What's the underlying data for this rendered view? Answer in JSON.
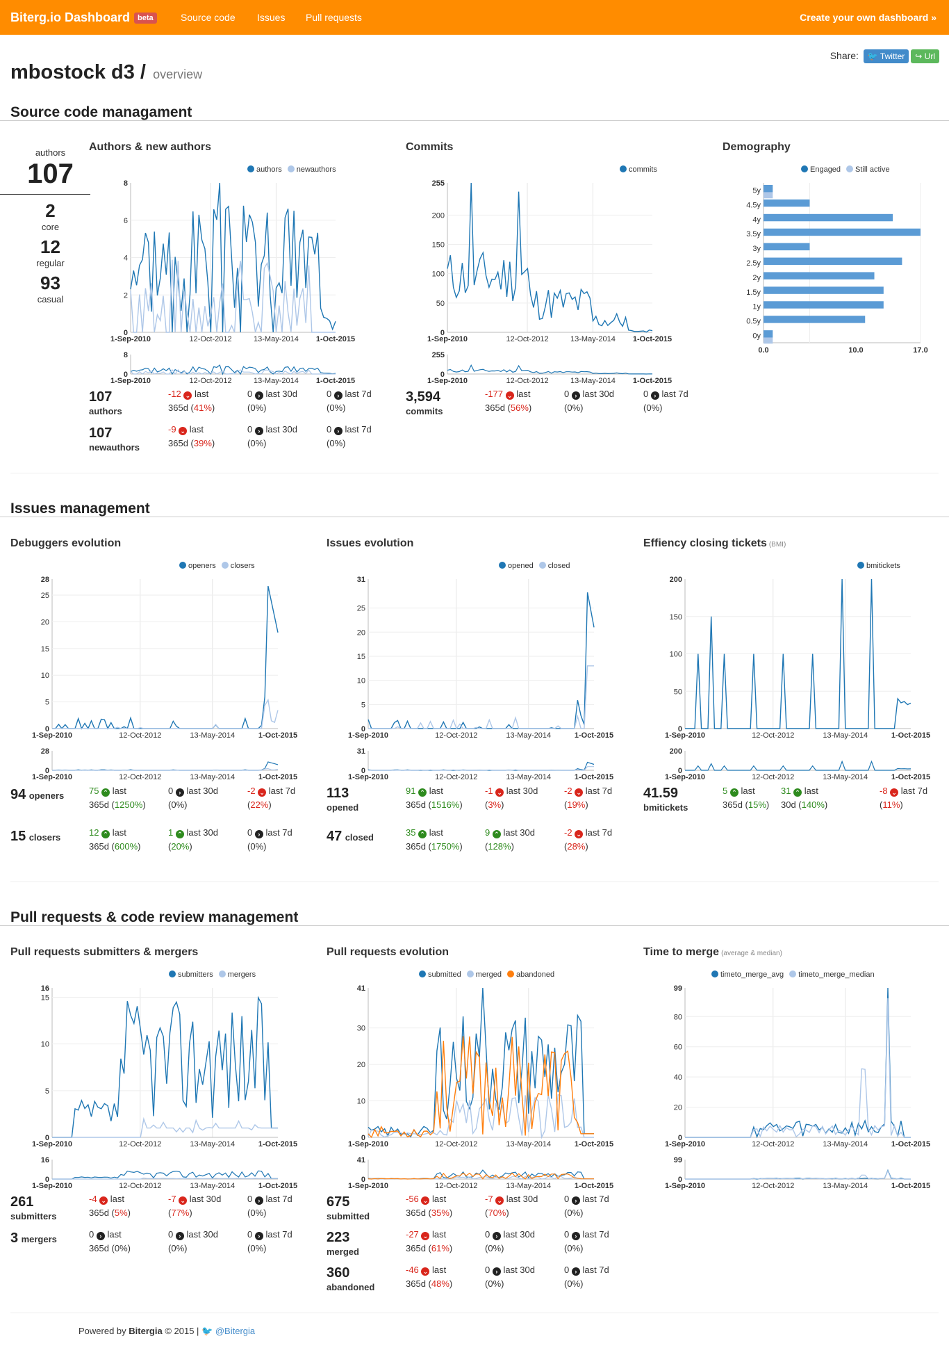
{
  "nav": {
    "brand": "Biterg.io Dashboard",
    "beta": "beta",
    "links": [
      "Source code",
      "Issues",
      "Pull requests"
    ],
    "create": "Create your own dashboard »"
  },
  "page": {
    "title": "mbostock d3 /",
    "subtitle": "overview"
  },
  "share": {
    "label": "Share:",
    "twitter": "Twitter",
    "url": "Url"
  },
  "sections": {
    "scm": "Source code managament",
    "its": "Issues management",
    "pr": "Pull requests & code review management"
  },
  "authors_summary": {
    "label": "authors",
    "total": "107",
    "core": "2",
    "core_label": "core",
    "regular": "12",
    "regular_label": "regular",
    "casual": "93",
    "casual_label": "casual"
  },
  "dates": {
    "d1": "1-Sep-2010",
    "d2": "12-Oct-2012",
    "d3": "13-May-2014",
    "d4": "1-Oct-2015"
  },
  "charts": {
    "authors": {
      "title": "Authors & new authors",
      "ymax": 8,
      "yticks": [
        0,
        2,
        4,
        6,
        8
      ],
      "legend": [
        {
          "name": "authors",
          "color": "#1f77b4"
        },
        {
          "name": "newauthors",
          "color": "#aec7e8"
        }
      ],
      "mini_ytick": "8"
    },
    "commits": {
      "title": "Commits",
      "ymax": 255,
      "yticks": [
        0,
        50,
        100,
        150,
        200,
        255
      ],
      "legend": [
        {
          "name": "commits",
          "color": "#1f77b4"
        }
      ],
      "mini_ytick": "255"
    },
    "demography": {
      "title": "Demography",
      "legend": [
        {
          "name": "Engaged",
          "color": "#1f77b4"
        },
        {
          "name": "Still active",
          "color": "#aec7e8"
        }
      ],
      "categories": [
        "5y",
        "4.5y",
        "4y",
        "3.5y",
        "3y",
        "2.5y",
        "2y",
        "1.5y",
        "1y",
        "0.5y",
        "0y"
      ],
      "engaged": [
        1,
        5,
        14,
        17,
        5,
        15,
        12,
        13,
        13,
        11,
        1
      ],
      "active": [
        1,
        0,
        0,
        0,
        0,
        0,
        0,
        0,
        0,
        0,
        1
      ],
      "xticks": [
        "0.0",
        "10.0",
        "17.0"
      ],
      "xmax": 17
    },
    "debuggers": {
      "title": "Debuggers evolution",
      "ymax": 28,
      "yticks": [
        0,
        5,
        10,
        15,
        20,
        25,
        28
      ],
      "legend": [
        {
          "name": "openers",
          "color": "#1f77b4"
        },
        {
          "name": "closers",
          "color": "#aec7e8"
        }
      ],
      "mini_ytick": "28"
    },
    "issues": {
      "title": "Issues evolution",
      "ymax": 31,
      "yticks": [
        0,
        5,
        10,
        15,
        20,
        25,
        31
      ],
      "legend": [
        {
          "name": "opened",
          "color": "#1f77b4"
        },
        {
          "name": "closed",
          "color": "#aec7e8"
        }
      ],
      "mini_ytick": "31"
    },
    "bmi": {
      "title": "Effiency closing tickets",
      "note": "(BMI)",
      "ymax": 200,
      "yticks": [
        0,
        50,
        100,
        150,
        200
      ],
      "legend": [
        {
          "name": "bmitickets",
          "color": "#1f77b4"
        }
      ],
      "mini_ytick": "200"
    },
    "prsub": {
      "title": "Pull requests submitters & mergers",
      "ymax": 16,
      "yticks": [
        0,
        5,
        10,
        15,
        16
      ],
      "legend": [
        {
          "name": "submitters",
          "color": "#1f77b4"
        },
        {
          "name": "mergers",
          "color": "#aec7e8"
        }
      ],
      "mini_ytick": "16"
    },
    "prevo": {
      "title": "Pull requests evolution",
      "ymax": 41,
      "yticks": [
        0,
        10,
        20,
        30,
        41
      ],
      "legend": [
        {
          "name": "submitted",
          "color": "#1f77b4"
        },
        {
          "name": "merged",
          "color": "#aec7e8"
        },
        {
          "name": "abandoned",
          "color": "#ff7f0e"
        }
      ],
      "mini_ytick": "41"
    },
    "ttm": {
      "title": "Time to merge",
      "note": "(average & median)",
      "ymax": 99,
      "yticks": [
        0,
        20,
        40,
        60,
        80,
        99
      ],
      "legend": [
        {
          "name": "timeto_merge_avg",
          "color": "#1f77b4"
        },
        {
          "name": "timeto_merge_median",
          "color": "#aec7e8"
        }
      ],
      "mini_ytick": "99"
    }
  },
  "stats": {
    "authors": [
      {
        "value": "107",
        "label": "authors",
        "y": {
          "v": "-12",
          "pct": "41%",
          "dir": "down"
        },
        "m": {
          "v": "0",
          "pct": "0%"
        },
        "w": {
          "v": "0",
          "pct": "0%"
        }
      },
      {
        "value": "107",
        "label": "newauthors",
        "y": {
          "v": "-9",
          "pct": "39%",
          "dir": "down"
        },
        "m": {
          "v": "0",
          "pct": "0%"
        },
        "w": {
          "v": "0",
          "pct": "0%"
        }
      }
    ],
    "commits": {
      "value": "3,594",
      "label": "commits",
      "y": {
        "v": "-177",
        "pct": "56%"
      },
      "m": {
        "v": "0",
        "pct": "0%"
      },
      "w": {
        "v": "0",
        "pct": "0%"
      }
    },
    "openers": {
      "value": "94",
      "label": "openers",
      "y": {
        "v": "75",
        "pct": "1250%"
      },
      "m": {
        "v": "0",
        "pct": "0%"
      },
      "w": {
        "v": "-2",
        "pct": "22%"
      }
    },
    "closers": {
      "value": "15",
      "label": "closers",
      "y": {
        "v": "12",
        "pct": "600%"
      },
      "m": {
        "v": "1",
        "pct": "20%"
      },
      "w": {
        "v": "0",
        "pct": "0%"
      }
    },
    "opened": {
      "value": "113",
      "label": "opened",
      "y": {
        "v": "91",
        "pct": "1516%"
      },
      "m": {
        "v": "-1",
        "pct": "3%"
      },
      "w": {
        "v": "-2",
        "pct": "19%"
      }
    },
    "closed": {
      "value": "47",
      "label": "closed",
      "y": {
        "v": "35",
        "pct": "1750%"
      },
      "m": {
        "v": "9",
        "pct": "128%"
      },
      "w": {
        "v": "-2",
        "pct": "28%"
      }
    },
    "bmi": {
      "value": "41.59",
      "label": "bmitickets",
      "y": {
        "v": "5",
        "pct": "15%"
      },
      "m": {
        "v": "31",
        "pct": "140%"
      },
      "w": {
        "v": "-8",
        "pct": "11%"
      }
    },
    "submitters": {
      "value": "261",
      "label": "submitters",
      "y": {
        "v": "-4",
        "pct": "5%"
      },
      "m": {
        "v": "-7",
        "pct": "77%"
      },
      "w": {
        "v": "0",
        "pct": "0%"
      }
    },
    "mergers": {
      "value": "3",
      "label": "mergers",
      "y": {
        "v": "0",
        "pct": "0%"
      },
      "m": {
        "v": "0",
        "pct": "0%"
      },
      "w": {
        "v": "0",
        "pct": "0%"
      }
    },
    "submitted": {
      "value": "675",
      "label": "submitted",
      "y": {
        "v": "-56",
        "pct": "35%"
      },
      "m": {
        "v": "-7",
        "pct": "70%"
      },
      "w": {
        "v": "0",
        "pct": "0%"
      }
    },
    "merged": {
      "value": "223",
      "label": "merged",
      "y": {
        "v": "-27",
        "pct": "61%"
      },
      "m": {
        "v": "0",
        "pct": "0%"
      },
      "w": {
        "v": "0",
        "pct": "0%"
      }
    },
    "abandoned": {
      "value": "360",
      "label": "abandoned",
      "y": {
        "v": "-46",
        "pct": "48%"
      },
      "m": {
        "v": "0",
        "pct": "0%"
      },
      "w": {
        "v": "0",
        "pct": "0%"
      }
    },
    "labels": {
      "last": "last",
      "d365": "365d",
      "d30": "last 30d",
      "d7": "last 7d",
      "d30b": "30d"
    }
  },
  "footer": {
    "powered": "Powered by",
    "brand": "Bitergia",
    "copy": "© 2015 |",
    "twitter": "@Bitergia"
  }
}
